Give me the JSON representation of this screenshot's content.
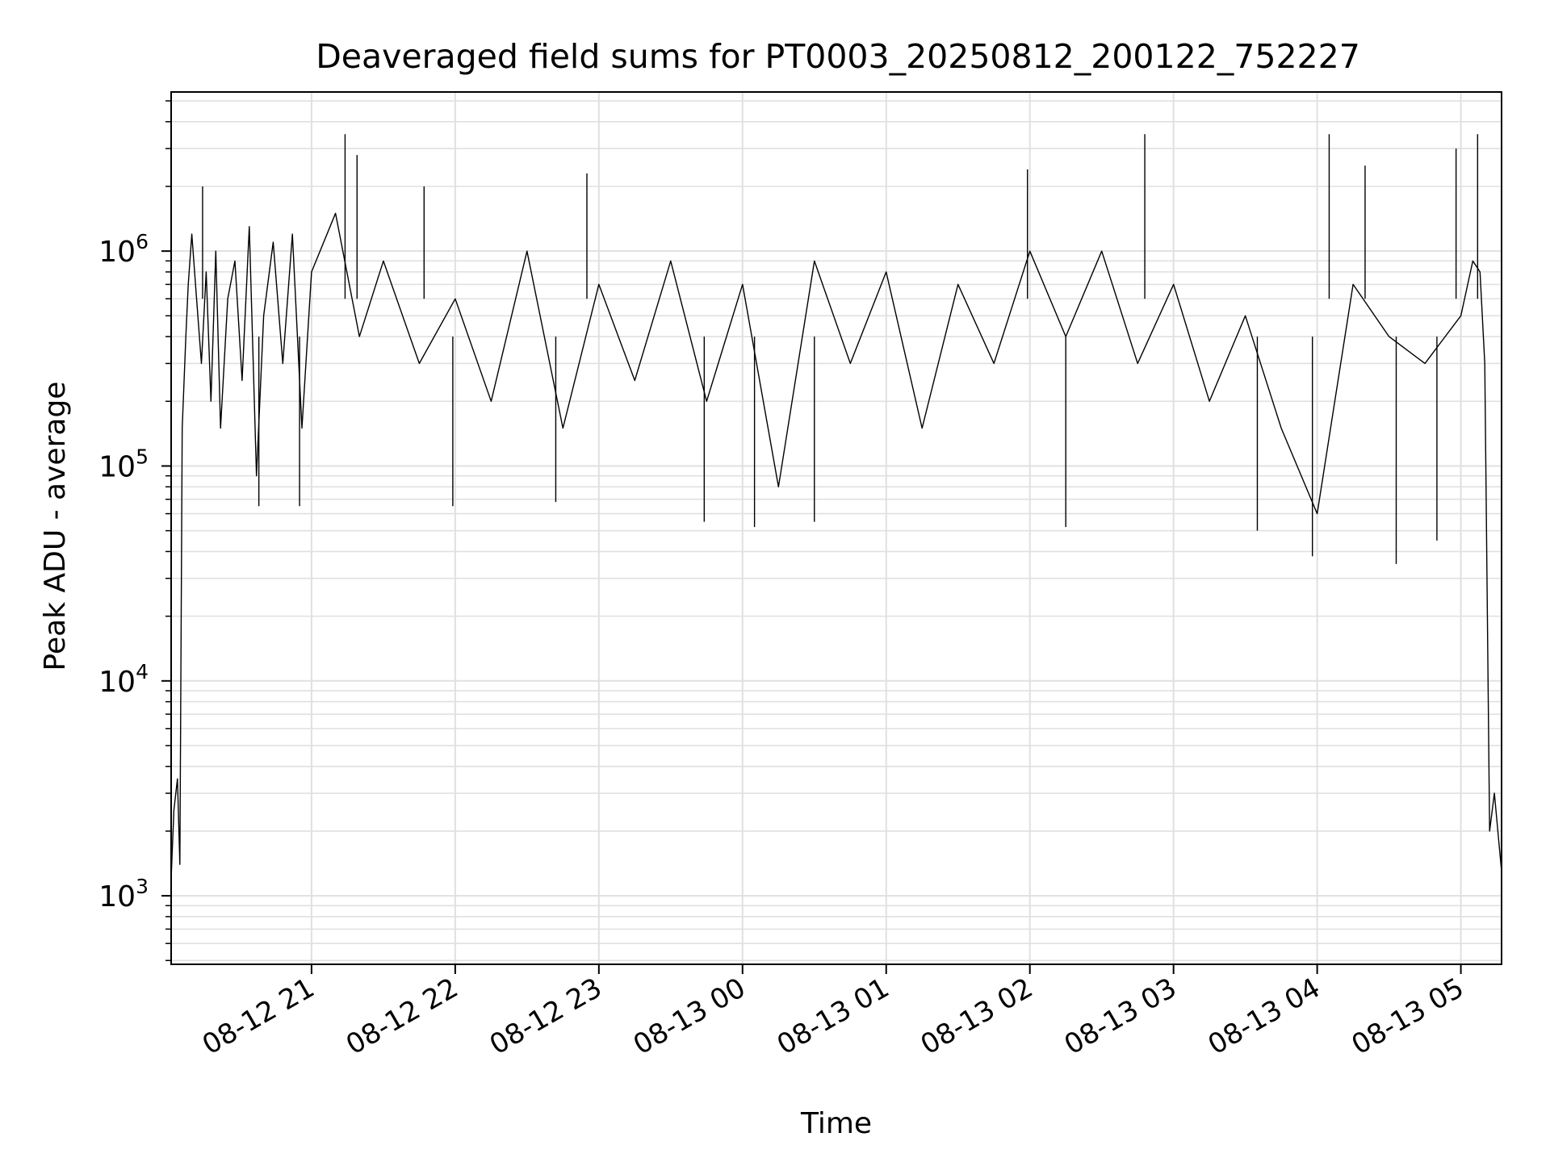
{
  "chart_data": {
    "type": "line",
    "title": "Deaveraged field sums for PT0003_20250812_200122_752227",
    "xlabel": "Time",
    "ylabel": "Peak ADU - average",
    "yscale": "log",
    "ylim": [
      480,
      5500000
    ],
    "xlim": [
      "2025-08-12 20:01:22",
      "2025-08-13 05:17:00"
    ],
    "grid": true,
    "legend": "none",
    "line_color": "#000000",
    "grid_color": "#e0e0e0",
    "x_ticks": [
      {
        "value": "2025-08-12 21:00",
        "label": "08-12 21"
      },
      {
        "value": "2025-08-12 22:00",
        "label": "08-12 22"
      },
      {
        "value": "2025-08-12 23:00",
        "label": "08-12 23"
      },
      {
        "value": "2025-08-13 00:00",
        "label": "08-13 00"
      },
      {
        "value": "2025-08-13 01:00",
        "label": "08-13 01"
      },
      {
        "value": "2025-08-13 02:00",
        "label": "08-13 02"
      },
      {
        "value": "2025-08-13 03:00",
        "label": "08-13 03"
      },
      {
        "value": "2025-08-13 04:00",
        "label": "08-13 04"
      },
      {
        "value": "2025-08-13 05:00",
        "label": "08-13 05"
      }
    ],
    "y_ticks": [
      {
        "value": 1000,
        "label_base": "10",
        "label_exp": "3"
      },
      {
        "value": 10000,
        "label_base": "10",
        "label_exp": "4"
      },
      {
        "value": 100000,
        "label_base": "10",
        "label_exp": "5"
      },
      {
        "value": 1000000,
        "label_base": "10",
        "label_exp": "6"
      }
    ],
    "series": [
      {
        "x": [
          "2025-08-12 20:01:22",
          "2025-08-12 20:02:30",
          "2025-08-12 20:04:00",
          "2025-08-12 20:05:00",
          "2025-08-12 20:06:00",
          "2025-08-12 20:07:30",
          "2025-08-12 20:08:30",
          "2025-08-12 20:10:00",
          "2025-08-12 20:12:00",
          "2025-08-12 20:14:00",
          "2025-08-12 20:16:00",
          "2025-08-12 20:18:00",
          "2025-08-12 20:20:00",
          "2025-08-12 20:22:00",
          "2025-08-12 20:25:00",
          "2025-08-12 20:28:00",
          "2025-08-12 20:31:00",
          "2025-08-12 20:34:00",
          "2025-08-12 20:37:00",
          "2025-08-12 20:40:00",
          "2025-08-12 20:44:00",
          "2025-08-12 20:48:00",
          "2025-08-12 20:52:00",
          "2025-08-12 20:56:00",
          "2025-08-12 21:00:00",
          "2025-08-12 21:10:00",
          "2025-08-12 21:20:00",
          "2025-08-12 21:30:00",
          "2025-08-12 21:45:00",
          "2025-08-12 22:00:00",
          "2025-08-12 22:15:00",
          "2025-08-12 22:30:00",
          "2025-08-12 22:45:00",
          "2025-08-12 23:00:00",
          "2025-08-12 23:15:00",
          "2025-08-12 23:30:00",
          "2025-08-12 23:45:00",
          "2025-08-13 00:00:00",
          "2025-08-13 00:15:00",
          "2025-08-13 00:30:00",
          "2025-08-13 00:45:00",
          "2025-08-13 01:00:00",
          "2025-08-13 01:15:00",
          "2025-08-13 01:30:00",
          "2025-08-13 01:45:00",
          "2025-08-13 02:00:00",
          "2025-08-13 02:15:00",
          "2025-08-13 02:30:00",
          "2025-08-13 02:45:00",
          "2025-08-13 03:00:00",
          "2025-08-13 03:15:00",
          "2025-08-13 03:30:00",
          "2025-08-13 03:45:00",
          "2025-08-13 04:00:00",
          "2025-08-13 04:15:00",
          "2025-08-13 04:30:00",
          "2025-08-13 04:45:00",
          "2025-08-13 05:00:00",
          "2025-08-13 05:05:00",
          "2025-08-13 05:08:00",
          "2025-08-13 05:10:00",
          "2025-08-13 05:12:00",
          "2025-08-13 05:14:00",
          "2025-08-13 05:17:00"
        ],
        "y": [
          1200,
          2500,
          3500,
          1400,
          150000,
          400000,
          700000,
          1200000,
          600000,
          300000,
          800000,
          200000,
          1000000,
          150000,
          600000,
          900000,
          250000,
          1300000,
          90000,
          500000,
          1100000,
          300000,
          1200000,
          150000,
          800000,
          1500000,
          400000,
          900000,
          300000,
          600000,
          200000,
          1000000,
          150000,
          700000,
          250000,
          900000,
          200000,
          700000,
          80000,
          900000,
          300000,
          800000,
          150000,
          700000,
          300000,
          1000000,
          400000,
          1000000,
          300000,
          700000,
          200000,
          500000,
          150000,
          60000,
          700000,
          400000,
          300000,
          500000,
          900000,
          800000,
          300000,
          2000,
          3000,
          1300
        ],
        "spikes": [
          {
            "x": "2025-08-12 20:14:30",
            "y": 2000000
          },
          {
            "x": "2025-08-12 21:14:00",
            "y": 3500000
          },
          {
            "x": "2025-08-12 21:19:00",
            "y": 2800000
          },
          {
            "x": "2025-08-12 21:47:00",
            "y": 2000000
          },
          {
            "x": "2025-08-12 22:55:00",
            "y": 2300000
          },
          {
            "x": "2025-08-13 01:59:00",
            "y": 2400000
          },
          {
            "x": "2025-08-13 02:48:00",
            "y": 3500000
          },
          {
            "x": "2025-08-13 04:05:00",
            "y": 3500000
          },
          {
            "x": "2025-08-13 04:20:00",
            "y": 2500000
          },
          {
            "x": "2025-08-13 04:58:00",
            "y": 3000000
          },
          {
            "x": "2025-08-13 05:07:00",
            "y": 3500000
          }
        ],
        "dips": [
          {
            "x": "2025-08-12 20:38:00",
            "y": 65000
          },
          {
            "x": "2025-08-12 20:55:00",
            "y": 65000
          },
          {
            "x": "2025-08-12 21:59:00",
            "y": 65000
          },
          {
            "x": "2025-08-12 22:42:00",
            "y": 68000
          },
          {
            "x": "2025-08-12 23:44:00",
            "y": 55000
          },
          {
            "x": "2025-08-13 00:05:00",
            "y": 52000
          },
          {
            "x": "2025-08-13 00:30:00",
            "y": 55000
          },
          {
            "x": "2025-08-13 02:15:00",
            "y": 52000
          },
          {
            "x": "2025-08-13 03:35:00",
            "y": 50000
          },
          {
            "x": "2025-08-13 03:58:00",
            "y": 38000
          },
          {
            "x": "2025-08-13 04:33:00",
            "y": 35000
          },
          {
            "x": "2025-08-13 04:50:00",
            "y": 45000
          }
        ]
      }
    ]
  }
}
